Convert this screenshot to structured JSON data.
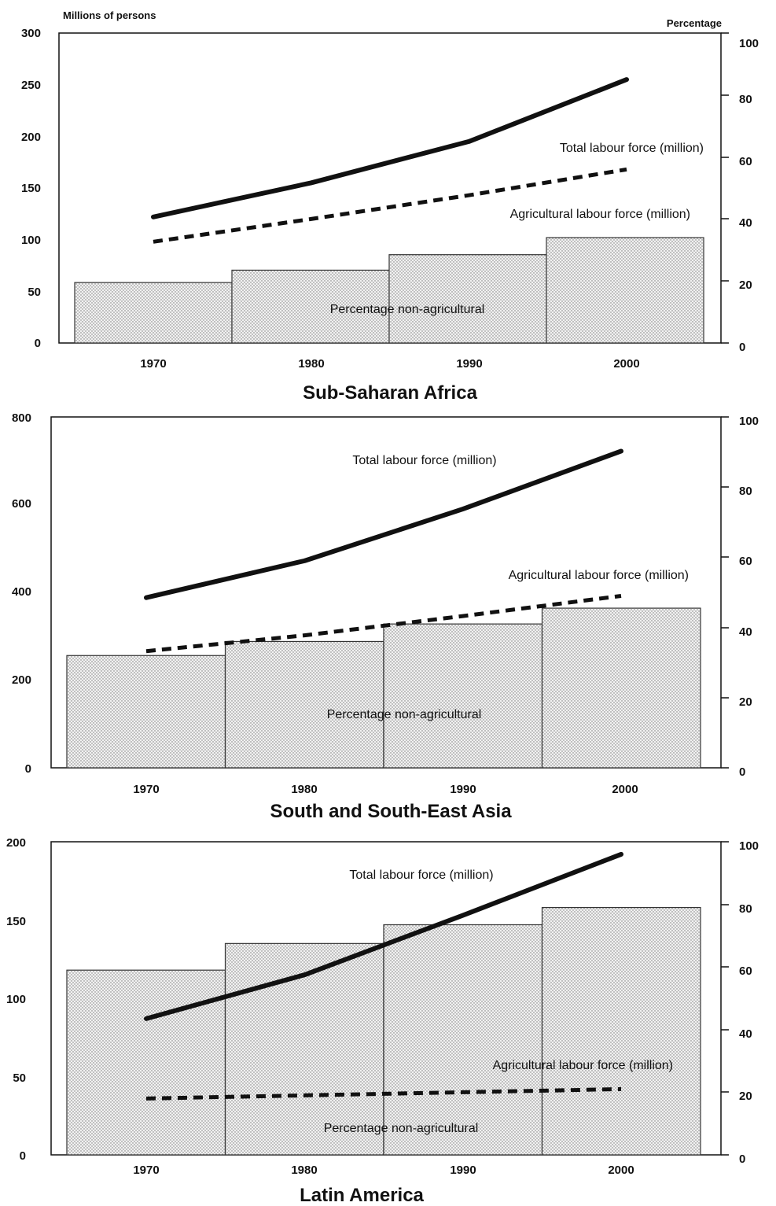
{
  "chart_data": [
    {
      "type": "bar",
      "title": "Sub-Saharan Africa",
      "ylabel": "Millions of persons",
      "ylabel_right": "Percentage",
      "categories": [
        "1970",
        "1980",
        "1990",
        "2000"
      ],
      "x_ticks": [
        "1970",
        "1980",
        "1990",
        "2000"
      ],
      "ylim": [
        0,
        300
      ],
      "y_ticks": [
        "0",
        "50",
        "100",
        "150",
        "200",
        "250",
        "300"
      ],
      "ylim_right": [
        0,
        100
      ],
      "y_ticks_right": [
        "0",
        "20",
        "40",
        "60",
        "80",
        "100"
      ],
      "series": [
        {
          "name": "Percentage non-agricultural",
          "axis": "right",
          "kind": "bar",
          "values": [
            19.5,
            23.5,
            28.5,
            34
          ]
        },
        {
          "name": "Total labour force (million)",
          "axis": "left",
          "kind": "line",
          "x": [
            1970,
            1980,
            1990,
            2000
          ],
          "values": [
            122,
            155,
            195,
            255
          ]
        },
        {
          "name": "Agricultural labour force (million)",
          "axis": "left",
          "kind": "line",
          "x": [
            1970,
            1980,
            1990,
            2000
          ],
          "values": [
            98,
            120,
            143,
            168
          ]
        }
      ],
      "labels": {
        "total": "Total labour force (million)",
        "agri": "Agricultural labour force (million)",
        "bars": "Percentage non-agricultural"
      }
    },
    {
      "type": "bar",
      "title": "South and South-East Asia",
      "categories": [
        "1970",
        "1980",
        "1990",
        "2000"
      ],
      "x_ticks": [
        "1970",
        "1980",
        "1990",
        "2000"
      ],
      "ylim": [
        0,
        800
      ],
      "y_ticks": [
        "0",
        "200",
        "400",
        "600",
        "800"
      ],
      "ylim_right": [
        0,
        100
      ],
      "y_ticks_right": [
        "0",
        "20",
        "40",
        "60",
        "80",
        "100"
      ],
      "series": [
        {
          "name": "Percentage non-agricultural",
          "axis": "right",
          "kind": "bar",
          "values": [
            32,
            36,
            41,
            45.5
          ]
        },
        {
          "name": "Total labour force (million)",
          "axis": "left",
          "kind": "line",
          "x": [
            1970,
            1980,
            1990,
            2000
          ],
          "values": [
            388,
            472,
            590,
            722
          ]
        },
        {
          "name": "Agricultural labour force (million)",
          "axis": "left",
          "kind": "line",
          "x": [
            1970,
            1980,
            1990,
            2000
          ],
          "values": [
            266,
            302,
            346,
            392
          ]
        }
      ],
      "labels": {
        "total": "Total labour force (million)",
        "agri": "Agricultural labour force (million)",
        "bars": "Percentage non-agricultural"
      }
    },
    {
      "type": "bar",
      "title": "Latin America",
      "categories": [
        "1970",
        "1980",
        "1990",
        "2000"
      ],
      "x_ticks": [
        "1970",
        "1980",
        "1990",
        "2000"
      ],
      "ylim": [
        0,
        200
      ],
      "y_ticks": [
        "0",
        "50",
        "100",
        "150",
        "200"
      ],
      "ylim_right": [
        0,
        100
      ],
      "y_ticks_right": [
        "0",
        "20",
        "40",
        "60",
        "80",
        "100"
      ],
      "series": [
        {
          "name": "Percentage non-agricultural",
          "axis": "right",
          "kind": "bar",
          "values": [
            59,
            67.5,
            73.5,
            79
          ]
        },
        {
          "name": "Total labour force (million)",
          "axis": "left",
          "kind": "line",
          "x": [
            1970,
            1980,
            1990,
            2000
          ],
          "values": [
            87,
            115,
            153,
            192
          ]
        },
        {
          "name": "Agricultural labour force (million)",
          "axis": "left",
          "kind": "line",
          "x": [
            1970,
            1980,
            1990,
            2000
          ],
          "values": [
            36,
            38,
            40,
            42
          ]
        }
      ],
      "labels": {
        "total": "Total labour force (million)",
        "agri": "Agricultural labour force (million)",
        "bars": "Percentage non-agricultural"
      }
    }
  ]
}
